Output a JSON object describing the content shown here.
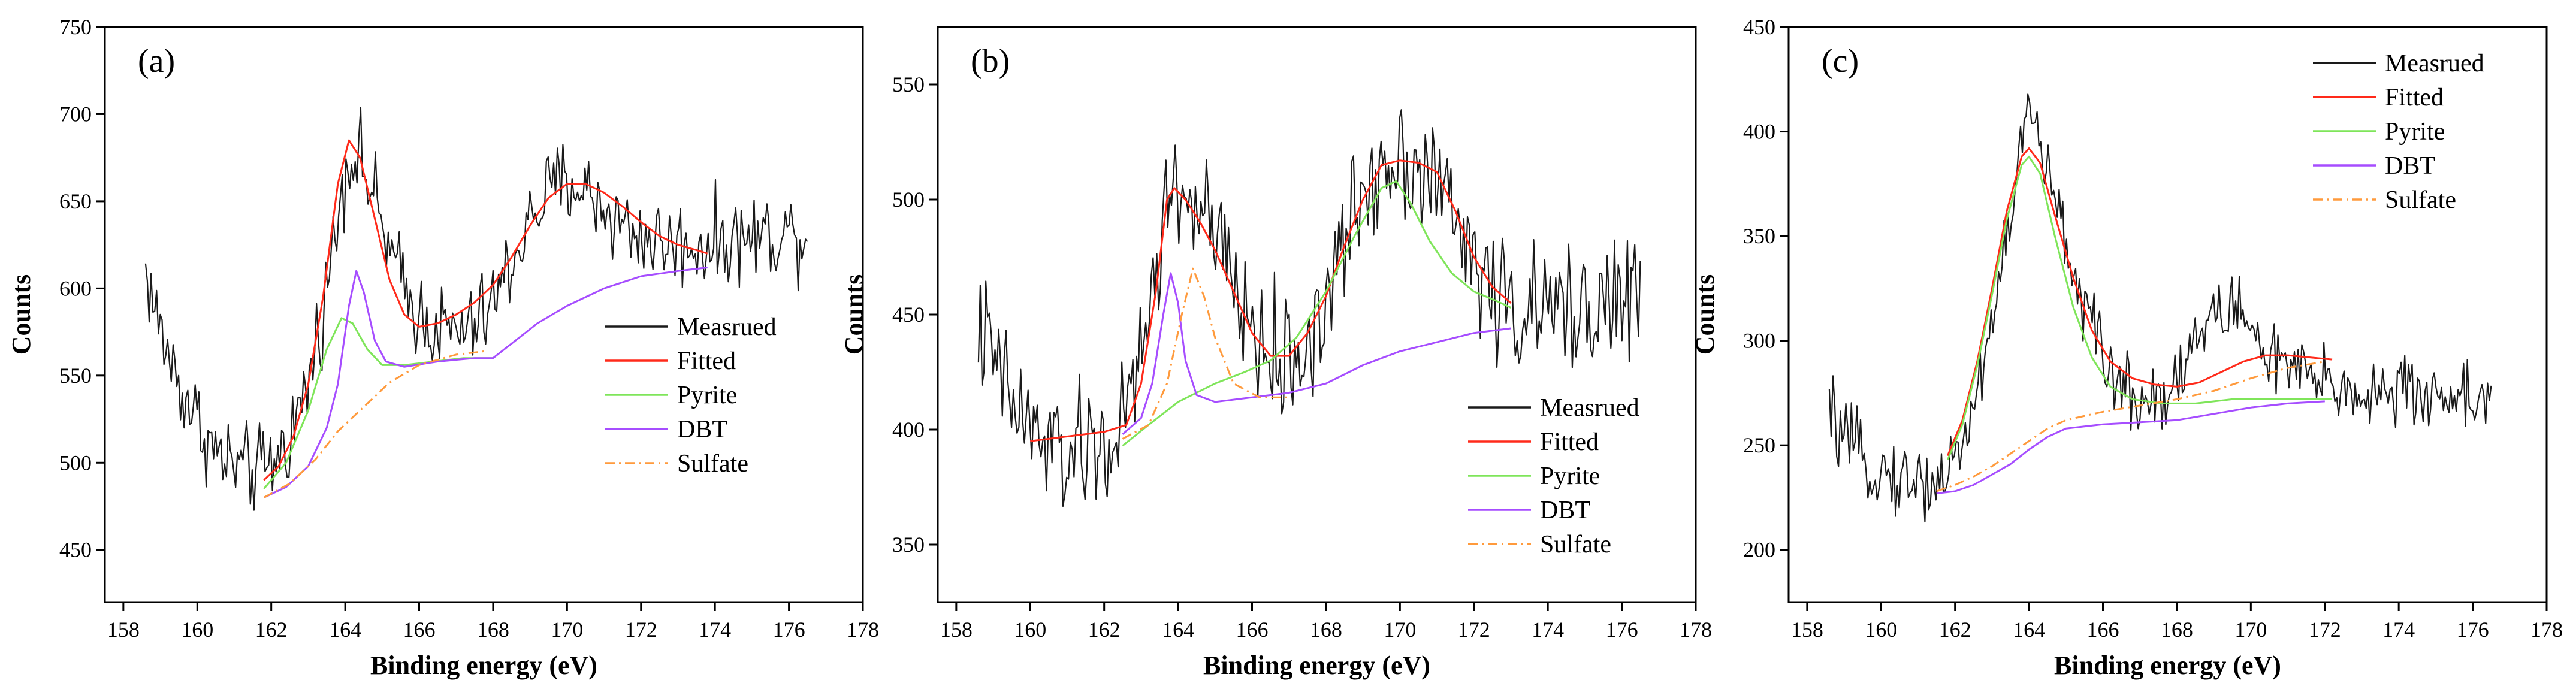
{
  "figure": {
    "legend": [
      "Measrued",
      "Fitted",
      "Pyrite",
      "DBT",
      "Sulfate"
    ]
  },
  "colors": {
    "measured": "#1a1a1a",
    "fitted": "#ff2a1a",
    "pyrite": "#7fe55a",
    "dbt": "#a64dff",
    "sulfate": "#ff9a3c"
  },
  "chart_data": [
    {
      "panel": "(a)",
      "type": "line",
      "xlabel": "Binding energy (eV)",
      "ylabel": "Counts",
      "xlim": [
        157.5,
        178
      ],
      "ylim": [
        420,
        750
      ],
      "xticks": [
        158,
        160,
        162,
        164,
        166,
        168,
        170,
        172,
        174,
        176,
        178
      ],
      "yticks": [
        450,
        500,
        550,
        600,
        650,
        700,
        750
      ],
      "legend_position": "center-right",
      "measured_profile": [
        [
          158.6,
          610
        ],
        [
          159,
          575
        ],
        [
          159.5,
          545
        ],
        [
          160,
          525
        ],
        [
          160.5,
          505
        ],
        [
          161,
          498
        ],
        [
          161.5,
          495
        ],
        [
          162,
          498
        ],
        [
          162.5,
          515
        ],
        [
          163,
          545
        ],
        [
          163.5,
          600
        ],
        [
          164,
          670
        ],
        [
          164.3,
          680
        ],
        [
          164.8,
          650
        ],
        [
          165.3,
          615
        ],
        [
          165.8,
          590
        ],
        [
          166.3,
          580
        ],
        [
          166.8,
          575
        ],
        [
          167.3,
          575
        ],
        [
          167.8,
          585
        ],
        [
          168.3,
          605
        ],
        [
          168.8,
          630
        ],
        [
          169.3,
          650
        ],
        [
          169.8,
          660
        ],
        [
          170.3,
          660
        ],
        [
          170.8,
          650
        ],
        [
          171.3,
          640
        ],
        [
          171.8,
          632
        ],
        [
          172.3,
          628
        ],
        [
          172.8,
          625
        ],
        [
          173.3,
          625
        ],
        [
          173.8,
          625
        ],
        [
          174.5,
          628
        ],
        [
          175.2,
          630
        ],
        [
          175.8,
          632
        ],
        [
          176.5,
          632
        ]
      ],
      "measured_noise": 20,
      "fitted": [
        [
          161.8,
          490
        ],
        [
          162.2,
          498
        ],
        [
          162.6,
          515
        ],
        [
          163,
          545
        ],
        [
          163.4,
          595
        ],
        [
          163.8,
          660
        ],
        [
          164.1,
          685
        ],
        [
          164.4,
          675
        ],
        [
          164.8,
          640
        ],
        [
          165.2,
          605
        ],
        [
          165.6,
          585
        ],
        [
          166,
          578
        ],
        [
          166.5,
          580
        ],
        [
          167,
          585
        ],
        [
          167.5,
          592
        ],
        [
          168,
          602
        ],
        [
          168.5,
          618
        ],
        [
          169,
          636
        ],
        [
          169.5,
          652
        ],
        [
          170,
          660
        ],
        [
          170.5,
          660
        ],
        [
          171,
          655
        ],
        [
          171.5,
          647
        ],
        [
          172,
          638
        ],
        [
          172.5,
          630
        ],
        [
          173,
          625
        ],
        [
          173.5,
          622
        ],
        [
          173.8,
          620
        ]
      ],
      "pyrite": [
        [
          161.8,
          485
        ],
        [
          162.4,
          500
        ],
        [
          163,
          530
        ],
        [
          163.5,
          565
        ],
        [
          163.9,
          583
        ],
        [
          164.2,
          580
        ],
        [
          164.6,
          565
        ],
        [
          165,
          556
        ],
        [
          165.6,
          556
        ],
        [
          166.4,
          558
        ],
        [
          167.2,
          560
        ],
        [
          168,
          560
        ]
      ],
      "dbt": [
        [
          161.8,
          480
        ],
        [
          162.4,
          486
        ],
        [
          163,
          498
        ],
        [
          163.5,
          520
        ],
        [
          163.8,
          545
        ],
        [
          164.1,
          590
        ],
        [
          164.3,
          610
        ],
        [
          164.5,
          598
        ],
        [
          164.8,
          570
        ],
        [
          165.1,
          558
        ],
        [
          165.6,
          555
        ],
        [
          166.5,
          558
        ],
        [
          167.5,
          560
        ],
        [
          168,
          560
        ],
        [
          168.6,
          570
        ],
        [
          169.2,
          580
        ],
        [
          170,
          590
        ],
        [
          171,
          600
        ],
        [
          172,
          607
        ],
        [
          173,
          610
        ],
        [
          173.8,
          612
        ]
      ],
      "sulfate": [
        [
          161.8,
          480
        ],
        [
          162.5,
          488
        ],
        [
          163.2,
          502
        ],
        [
          163.8,
          518
        ],
        [
          164.5,
          532
        ],
        [
          165.2,
          546
        ],
        [
          166,
          556
        ],
        [
          167,
          562
        ],
        [
          167.8,
          564
        ]
      ]
    },
    {
      "panel": "(b)",
      "type": "line",
      "xlabel": "Binding energy (eV)",
      "ylabel": "Counts",
      "xlim": [
        157.5,
        178
      ],
      "ylim": [
        325,
        575
      ],
      "xticks": [
        158,
        160,
        162,
        164,
        166,
        168,
        170,
        172,
        174,
        176,
        178
      ],
      "yticks": [
        350,
        400,
        450,
        500,
        550
      ],
      "legend_position": "bottom-right",
      "measured_profile": [
        [
          158.6,
          445
        ],
        [
          159,
          430
        ],
        [
          159.5,
          412
        ],
        [
          160,
          400
        ],
        [
          160.5,
          392
        ],
        [
          161,
          388
        ],
        [
          161.5,
          390
        ],
        [
          162,
          392
        ],
        [
          162.5,
          400
        ],
        [
          163,
          430
        ],
        [
          163.5,
          480
        ],
        [
          163.8,
          505
        ],
        [
          164.3,
          500
        ],
        [
          164.8,
          490
        ],
        [
          165.3,
          470
        ],
        [
          165.8,
          450
        ],
        [
          166.3,
          435
        ],
        [
          166.8,
          428
        ],
        [
          167.3,
          432
        ],
        [
          167.8,
          445
        ],
        [
          168.3,
          470
        ],
        [
          168.8,
          495
        ],
        [
          169.3,
          512
        ],
        [
          169.8,
          520
        ],
        [
          170.3,
          518
        ],
        [
          170.8,
          512
        ],
        [
          171.3,
          498
        ],
        [
          171.8,
          480
        ],
        [
          172.3,
          465
        ],
        [
          172.8,
          455
        ],
        [
          173.3,
          450
        ],
        [
          173.8,
          450
        ],
        [
          174.5,
          452
        ],
        [
          175.2,
          455
        ],
        [
          175.8,
          455
        ],
        [
          176.5,
          458
        ]
      ],
      "measured_noise": 22,
      "fitted": [
        [
          160,
          395
        ],
        [
          161,
          397
        ],
        [
          162,
          399
        ],
        [
          162.6,
          402
        ],
        [
          163,
          420
        ],
        [
          163.4,
          460
        ],
        [
          163.7,
          500
        ],
        [
          163.9,
          505
        ],
        [
          164.2,
          500
        ],
        [
          164.6,
          490
        ],
        [
          165,
          478
        ],
        [
          165.5,
          460
        ],
        [
          166,
          442
        ],
        [
          166.5,
          432
        ],
        [
          167,
          432
        ],
        [
          167.5,
          442
        ],
        [
          168,
          458
        ],
        [
          168.5,
          480
        ],
        [
          169,
          500
        ],
        [
          169.5,
          515
        ],
        [
          170,
          517
        ],
        [
          170.5,
          516
        ],
        [
          171,
          512
        ],
        [
          171.5,
          495
        ],
        [
          172,
          475
        ],
        [
          172.5,
          462
        ],
        [
          173,
          455
        ]
      ],
      "pyrite": [
        [
          162.5,
          393
        ],
        [
          163.2,
          402
        ],
        [
          164,
          412
        ],
        [
          165,
          420
        ],
        [
          165.8,
          425
        ],
        [
          166.5,
          430
        ],
        [
          167.2,
          440
        ],
        [
          168,
          460
        ],
        [
          168.8,
          485
        ],
        [
          169.5,
          505
        ],
        [
          169.9,
          508
        ],
        [
          170.3,
          498
        ],
        [
          170.8,
          482
        ],
        [
          171.4,
          468
        ],
        [
          172,
          460
        ],
        [
          172.6,
          456
        ],
        [
          173,
          453
        ]
      ],
      "dbt": [
        [
          162.5,
          398
        ],
        [
          163,
          405
        ],
        [
          163.3,
          420
        ],
        [
          163.6,
          450
        ],
        [
          163.8,
          468
        ],
        [
          164,
          455
        ],
        [
          164.2,
          430
        ],
        [
          164.5,
          415
        ],
        [
          165,
          412
        ],
        [
          166,
          414
        ],
        [
          167,
          416
        ],
        [
          168,
          420
        ],
        [
          169,
          428
        ],
        [
          170,
          434
        ],
        [
          171,
          438
        ],
        [
          172,
          442
        ],
        [
          173,
          444
        ]
      ],
      "sulfate": [
        [
          162.5,
          396
        ],
        [
          163.2,
          402
        ],
        [
          163.7,
          420
        ],
        [
          164.1,
          450
        ],
        [
          164.4,
          470
        ],
        [
          164.7,
          458
        ],
        [
          165,
          440
        ],
        [
          165.5,
          420
        ],
        [
          166.2,
          414
        ],
        [
          167,
          414
        ]
      ]
    },
    {
      "panel": "(c)",
      "type": "line",
      "xlabel": "Binding energy (eV)",
      "ylabel": "Counts",
      "xlim": [
        157.5,
        178
      ],
      "ylim": [
        175,
        450
      ],
      "xticks": [
        158,
        160,
        162,
        164,
        166,
        168,
        170,
        172,
        174,
        176,
        178
      ],
      "yticks": [
        200,
        250,
        300,
        350,
        400,
        450
      ],
      "legend_position": "top-right",
      "measured_profile": [
        [
          158.6,
          265
        ],
        [
          159,
          252
        ],
        [
          159.5,
          243
        ],
        [
          160,
          238
        ],
        [
          160.5,
          234
        ],
        [
          161,
          232
        ],
        [
          161.5,
          233
        ],
        [
          162,
          242
        ],
        [
          162.5,
          268
        ],
        [
          163,
          310
        ],
        [
          163.5,
          360
        ],
        [
          163.8,
          395
        ],
        [
          164,
          410
        ],
        [
          164.3,
          395
        ],
        [
          164.7,
          365
        ],
        [
          165.2,
          335
        ],
        [
          165.7,
          305
        ],
        [
          166.2,
          285
        ],
        [
          166.7,
          275
        ],
        [
          167.2,
          272
        ],
        [
          167.7,
          275
        ],
        [
          168.2,
          290
        ],
        [
          168.7,
          305
        ],
        [
          169.2,
          315
        ],
        [
          169.7,
          315
        ],
        [
          170.2,
          300
        ],
        [
          170.7,
          290
        ],
        [
          171.2,
          285
        ],
        [
          171.7,
          280
        ],
        [
          172.2,
          278
        ],
        [
          172.8,
          276
        ],
        [
          173.5,
          275
        ],
        [
          174.2,
          275
        ],
        [
          175,
          274
        ],
        [
          175.8,
          274
        ],
        [
          176.5,
          273
        ]
      ],
      "measured_noise": 14,
      "fitted": [
        [
          161.8,
          245
        ],
        [
          162.2,
          262
        ],
        [
          162.6,
          290
        ],
        [
          163,
          325
        ],
        [
          163.4,
          362
        ],
        [
          163.8,
          388
        ],
        [
          164,
          392
        ],
        [
          164.3,
          385
        ],
        [
          164.7,
          360
        ],
        [
          165.2,
          330
        ],
        [
          165.7,
          305
        ],
        [
          166.2,
          290
        ],
        [
          166.8,
          282
        ],
        [
          167.4,
          279
        ],
        [
          168,
          278
        ],
        [
          168.6,
          280
        ],
        [
          169.2,
          285
        ],
        [
          169.8,
          290
        ],
        [
          170.4,
          293
        ],
        [
          171,
          293
        ],
        [
          171.6,
          292
        ],
        [
          172.2,
          291
        ]
      ],
      "pyrite": [
        [
          161.8,
          243
        ],
        [
          162.2,
          260
        ],
        [
          162.6,
          288
        ],
        [
          163,
          322
        ],
        [
          163.4,
          358
        ],
        [
          163.8,
          384
        ],
        [
          164,
          388
        ],
        [
          164.3,
          380
        ],
        [
          164.7,
          350
        ],
        [
          165.2,
          316
        ],
        [
          165.7,
          292
        ],
        [
          166.2,
          278
        ],
        [
          166.8,
          272
        ],
        [
          167.6,
          270
        ],
        [
          168.5,
          270
        ],
        [
          169.5,
          272
        ],
        [
          170.5,
          272
        ],
        [
          171.5,
          272
        ],
        [
          172.2,
          272
        ]
      ],
      "dbt": [
        [
          161.5,
          227
        ],
        [
          162,
          228
        ],
        [
          162.5,
          231
        ],
        [
          163,
          236
        ],
        [
          163.5,
          241
        ],
        [
          164,
          248
        ],
        [
          164.5,
          254
        ],
        [
          165,
          258
        ],
        [
          166,
          260
        ],
        [
          167,
          261
        ],
        [
          168,
          262
        ],
        [
          169,
          265
        ],
        [
          170,
          268
        ],
        [
          171,
          270
        ],
        [
          172,
          271
        ]
      ],
      "sulfate": [
        [
          161.5,
          228
        ],
        [
          162,
          231
        ],
        [
          162.5,
          235
        ],
        [
          163,
          240
        ],
        [
          163.5,
          246
        ],
        [
          164,
          252
        ],
        [
          164.5,
          258
        ],
        [
          165,
          262
        ],
        [
          166,
          266
        ],
        [
          167,
          269
        ],
        [
          168,
          272
        ],
        [
          169,
          276
        ],
        [
          170,
          282
        ],
        [
          171,
          287
        ],
        [
          172,
          290
        ]
      ]
    }
  ]
}
